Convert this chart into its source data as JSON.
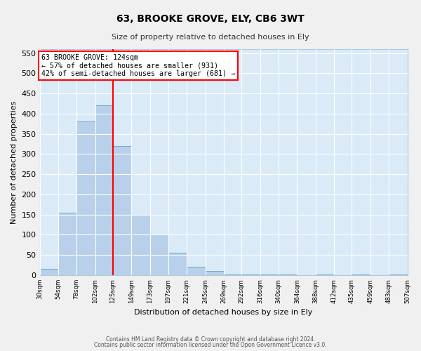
{
  "title": "63, BROOKE GROVE, ELY, CB6 3WT",
  "subtitle": "Size of property relative to detached houses in Ely",
  "xlabel": "Distribution of detached houses by size in Ely",
  "ylabel": "Number of detached properties",
  "bar_color": "#b8d0ea",
  "bar_edge_color": "#6aaad4",
  "background_color": "#daeaf6",
  "grid_color": "#ffffff",
  "vline_x": 125,
  "vline_color": "red",
  "annotation_title": "63 BROOKE GROVE: 124sqm",
  "annotation_line1": "← 57% of detached houses are smaller (931)",
  "annotation_line2": "42% of semi-detached houses are larger (681) →",
  "bin_edges": [
    30,
    54,
    78,
    102,
    125,
    149,
    173,
    197,
    221,
    245,
    269,
    292,
    316,
    340,
    364,
    388,
    412,
    435,
    459,
    483,
    507
  ],
  "bin_heights": [
    15,
    155,
    380,
    420,
    320,
    150,
    100,
    55,
    20,
    10,
    2,
    1,
    1,
    1,
    0,
    1,
    0,
    1,
    0,
    2
  ],
  "ylim": [
    0,
    560
  ],
  "yticks": [
    0,
    50,
    100,
    150,
    200,
    250,
    300,
    350,
    400,
    450,
    500,
    550
  ],
  "footnote1": "Contains HM Land Registry data © Crown copyright and database right 2024.",
  "footnote2": "Contains public sector information licensed under the Open Government Licence v3.0."
}
